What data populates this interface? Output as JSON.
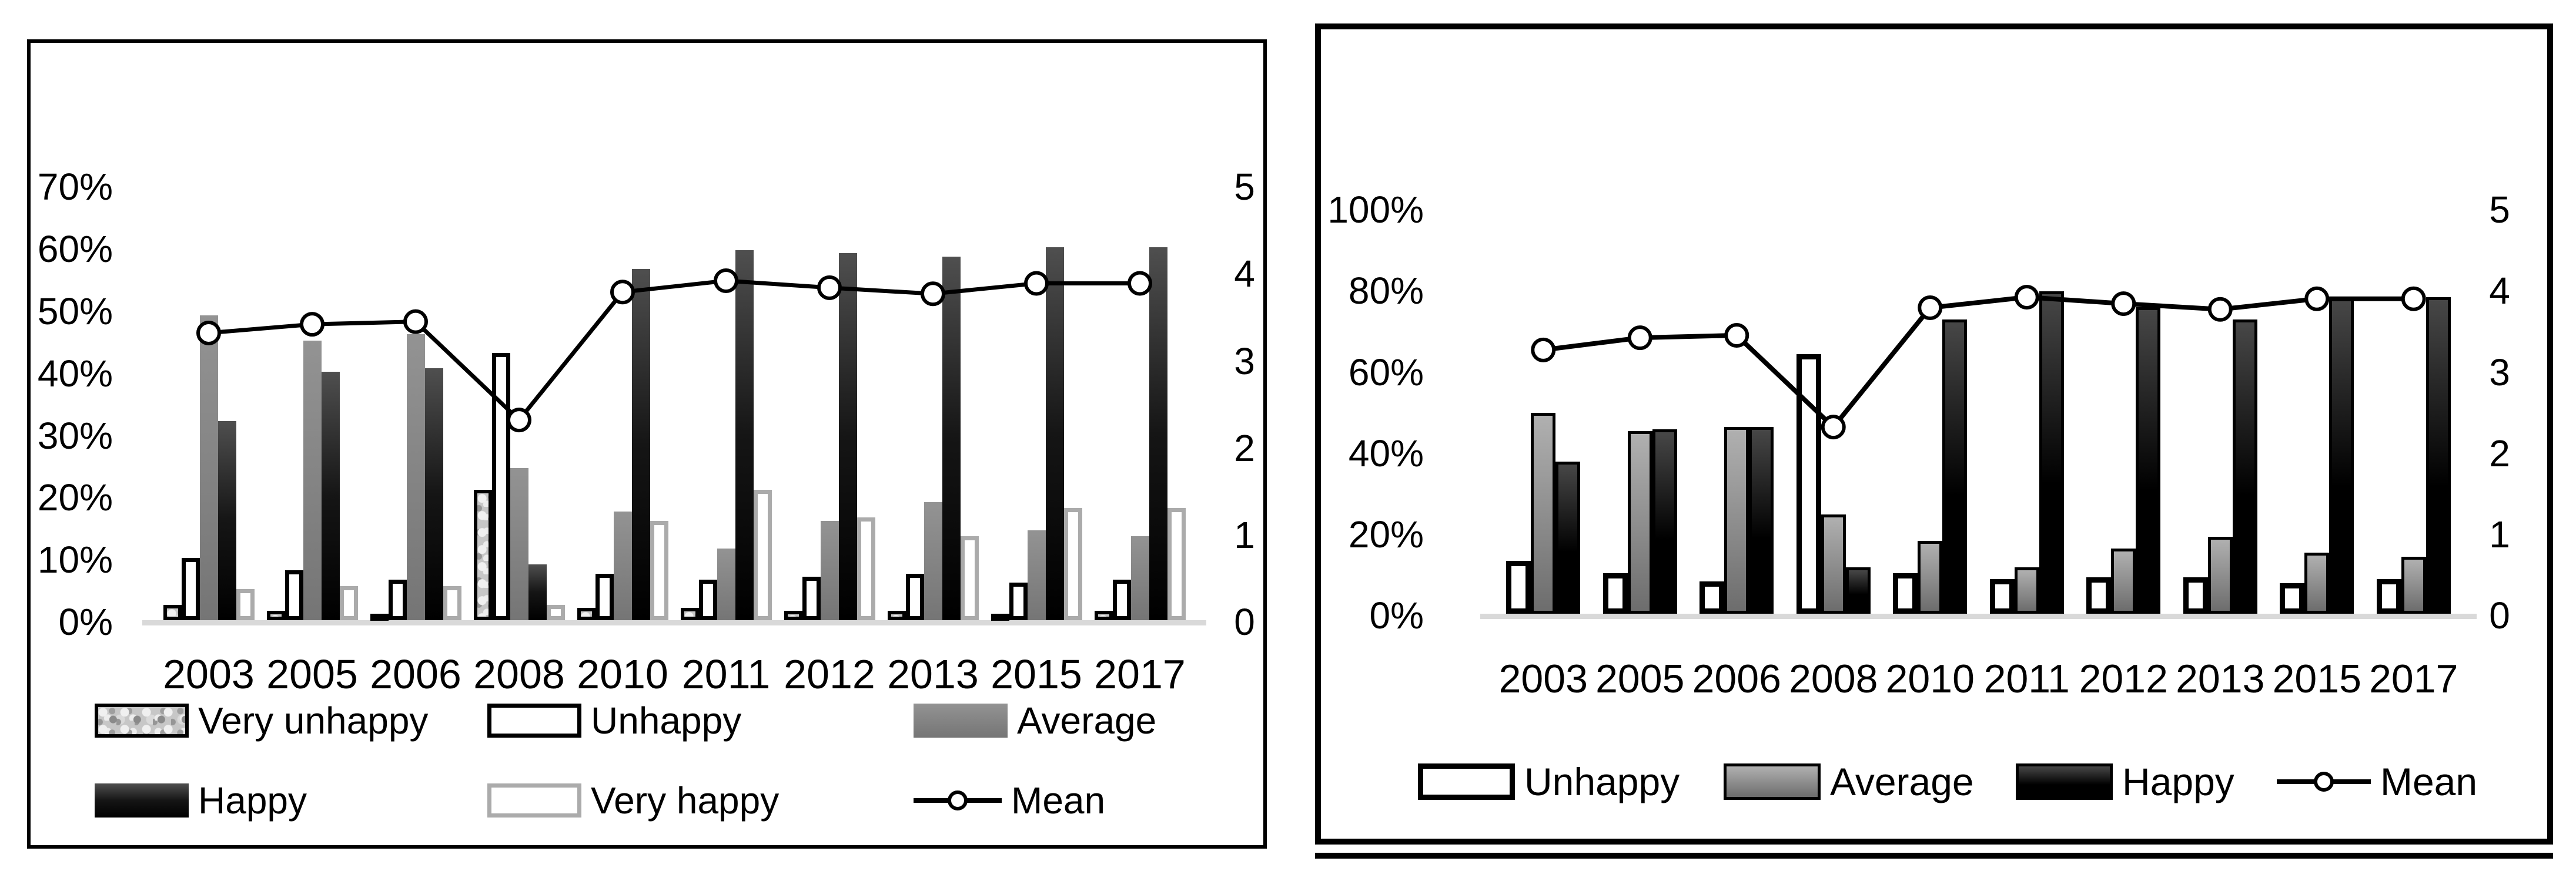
{
  "figure": {
    "background": "#ffffff",
    "ink_color": "#000000",
    "baseline_color": "#d9d9d9",
    "panel_count": 2
  },
  "chart_data": [
    {
      "type": "bar",
      "subtype": "grouped-bar-with-line",
      "title": "",
      "xlabel": "",
      "ylabel": "",
      "grid": false,
      "legend_position": "bottom",
      "categories": [
        "2003",
        "2005",
        "2006",
        "2008",
        "2010",
        "2011",
        "2012",
        "2013",
        "2015",
        "2017"
      ],
      "series": [
        {
          "name": "Very unhappy",
          "fill": "texture",
          "values": [
            2.5,
            1.5,
            1,
            21,
            2,
            2,
            1.5,
            1.5,
            1,
            1.5
          ]
        },
        {
          "name": "Unhappy",
          "fill": "white-black",
          "values": [
            10,
            8,
            6.5,
            43,
            7.5,
            6.5,
            7,
            7.5,
            6,
            6.5
          ]
        },
        {
          "name": "Average",
          "fill": "gray",
          "values": [
            49,
            45,
            46,
            24.5,
            17.5,
            11.5,
            16,
            19,
            14.5,
            13.5
          ]
        },
        {
          "name": "Happy",
          "fill": "black-gradient",
          "values": [
            32,
            40,
            40.5,
            9,
            56.5,
            59.5,
            59,
            58.5,
            60,
            60
          ]
        },
        {
          "name": "Very happy",
          "fill": "white-gray",
          "values": [
            5,
            5.5,
            5.5,
            2.5,
            16,
            21,
            16.5,
            13.5,
            18,
            18
          ]
        }
      ],
      "line_series": {
        "name": "Mean",
        "marker": "open-circle",
        "axis": "right",
        "values": [
          3.3,
          3.4,
          3.43,
          2.3,
          3.77,
          3.9,
          3.82,
          3.75,
          3.87,
          3.87
        ]
      },
      "y_axis_left": {
        "tick_labels": [
          "0%",
          "10%",
          "20%",
          "30%",
          "40%",
          "50%",
          "60%",
          "70%"
        ],
        "tick_values": [
          0,
          10,
          20,
          30,
          40,
          50,
          60,
          70
        ],
        "min": 0,
        "max": 70
      },
      "y_axis_right": {
        "tick_labels": [
          "0",
          "1",
          "2",
          "3",
          "4",
          "5"
        ],
        "tick_values": [
          0,
          1,
          2,
          3,
          4,
          5
        ],
        "min": 0,
        "max": 5
      },
      "legend_rows": [
        [
          "Very unhappy",
          "Unhappy",
          "Average"
        ],
        [
          "Happy",
          "Very happy",
          "Mean"
        ]
      ]
    },
    {
      "type": "bar",
      "subtype": "grouped-bar-with-line",
      "title": "",
      "xlabel": "",
      "ylabel": "",
      "grid": false,
      "legend_position": "bottom",
      "categories": [
        "2003",
        "2005",
        "2006",
        "2008",
        "2010",
        "2011",
        "2012",
        "2013",
        "2015",
        "2017"
      ],
      "series": [
        {
          "name": "Unhappy",
          "fill": "white-black-thick",
          "values": [
            13,
            10,
            8,
            64,
            10,
            8.5,
            9,
            9,
            7.5,
            8.5
          ]
        },
        {
          "name": "Average",
          "fill": "gray-outlined",
          "values": [
            49.5,
            45,
            46,
            24.5,
            18,
            11.5,
            16,
            19,
            15,
            14
          ]
        },
        {
          "name": "Happy",
          "fill": "black-outlined",
          "values": [
            37.5,
            45.5,
            46,
            11.5,
            72.5,
            79.5,
            75.5,
            72.5,
            78,
            78
          ]
        }
      ],
      "line_series": {
        "name": "Mean",
        "marker": "open-circle",
        "axis": "right",
        "values": [
          3.25,
          3.4,
          3.43,
          2.3,
          3.77,
          3.9,
          3.82,
          3.75,
          3.88,
          3.88
        ]
      },
      "y_axis_left": {
        "tick_labels": [
          "0%",
          "20%",
          "40%",
          "60%",
          "80%",
          "100%"
        ],
        "tick_values": [
          0,
          20,
          40,
          60,
          80,
          100
        ],
        "min": 0,
        "max": 100
      },
      "y_axis_right": {
        "tick_labels": [
          "0",
          "1",
          "2",
          "3",
          "4",
          "5"
        ],
        "tick_values": [
          0,
          1,
          2,
          3,
          4,
          5
        ],
        "min": 0,
        "max": 5
      },
      "legend_rows": [
        [
          "Unhappy",
          "Average",
          "Happy",
          "Mean"
        ]
      ]
    }
  ]
}
